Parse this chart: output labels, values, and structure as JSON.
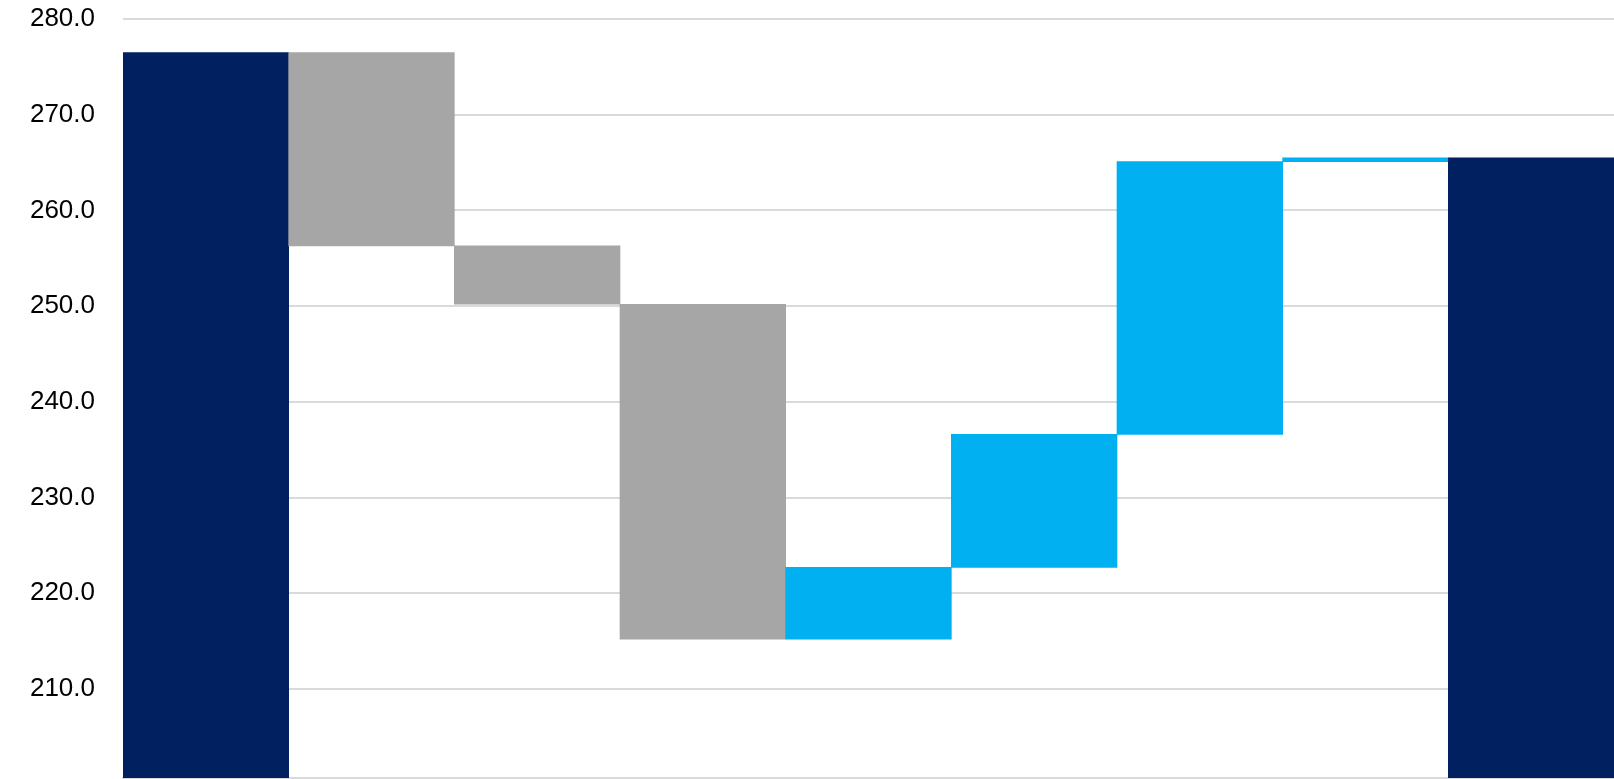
{
  "chart_data": {
    "type": "bar",
    "categories": [
      null,
      null,
      null,
      null,
      null,
      null,
      null,
      null,
      null
    ],
    "values": [
      276.5,
      -20.2,
      -6.1,
      -35.0,
      7.5,
      13.9,
      28.5,
      0.4,
      265.5
    ],
    "base": [
      null,
      276.5,
      256.3,
      250.2,
      215.2,
      222.7,
      236.6,
      265.1,
      null
    ],
    "colors": [
      "#002060",
      "#a6a6a6",
      "#a6a6a6",
      "#a6a6a6",
      "#00b0f0",
      "#00b0f0",
      "#00b0f0",
      "#00b0f0",
      "#002060"
    ],
    "ylim": [
      200.7,
      280
    ],
    "yticks": [
      {
        "value": 210,
        "label": "210.0"
      },
      {
        "value": 220,
        "label": "220.0"
      },
      {
        "value": 230,
        "label": "230.0"
      },
      {
        "value": 240,
        "label": "240.0"
      },
      {
        "value": 250,
        "label": "250.0"
      },
      {
        "value": 260,
        "label": "260.0"
      },
      {
        "value": 270,
        "label": "270.0"
      },
      {
        "value": 280,
        "label": "280.0"
      }
    ],
    "grid": "y",
    "tick_labels": "y",
    "legend": false
  }
}
